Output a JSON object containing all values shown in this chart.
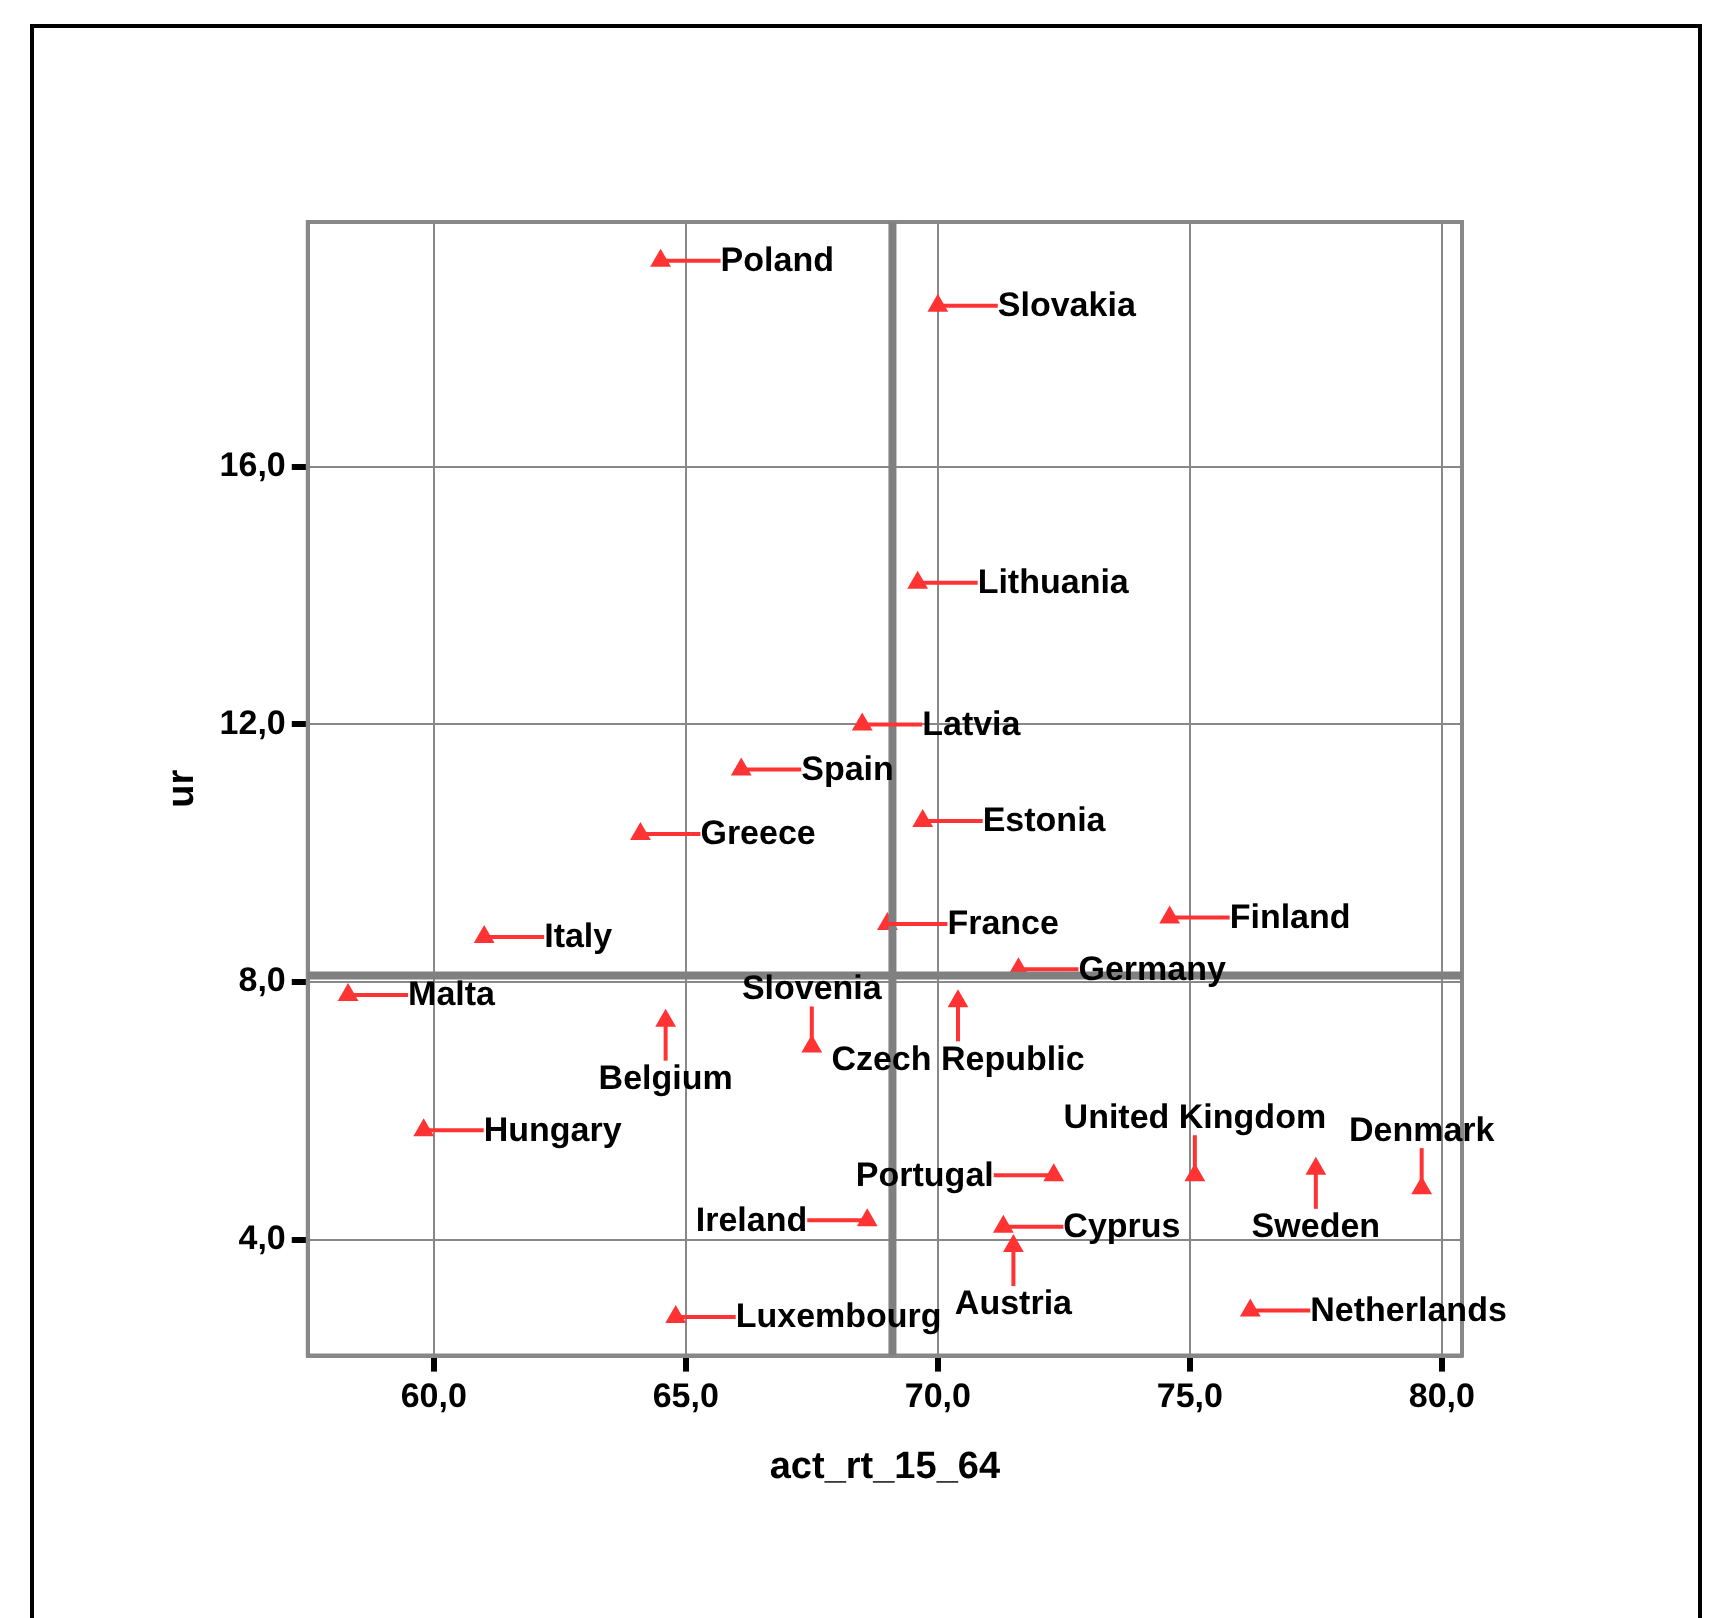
{
  "chart_data": {
    "type": "scatter",
    "xlabel": "act_rt_15_64",
    "ylabel": "ur",
    "x": [
      64.5,
      70.0,
      69.6,
      68.5,
      66.1,
      64.1,
      69.7,
      69.0,
      74.6,
      61.0,
      71.6,
      58.3,
      70.4,
      64.6,
      67.5,
      59.8,
      71.3,
      71.5,
      72.3,
      75.1,
      77.5,
      79.6,
      68.6,
      64.8,
      76.2
    ],
    "values": [
      19.2,
      18.5,
      14.2,
      12.0,
      11.3,
      10.3,
      10.5,
      8.9,
      9.0,
      8.7,
      8.2,
      7.8,
      7.7,
      7.4,
      7.0,
      5.7,
      4.2,
      3.9,
      5.0,
      5.0,
      5.1,
      4.8,
      4.3,
      2.8,
      2.9
    ],
    "color": "#ff3333",
    "marker": "triangle",
    "grid": true,
    "xlim": [
      57.5,
      80.4
    ],
    "ylim": [
      2.2,
      19.8
    ],
    "xticks": [
      {
        "value": 60,
        "label": "60,0"
      },
      {
        "value": 65,
        "label": "65,0"
      },
      {
        "value": 70,
        "label": "70,0"
      },
      {
        "value": 75,
        "label": "75,0"
      },
      {
        "value": 80,
        "label": "80,0"
      }
    ],
    "yticks": [
      {
        "value": 4,
        "label": "4,0"
      },
      {
        "value": 8,
        "label": "8,0"
      },
      {
        "value": 12,
        "label": "12,0"
      },
      {
        "value": 16,
        "label": "16,0"
      }
    ],
    "ref_lines": [
      {
        "axis": "x",
        "value": 69.1,
        "color": "#808080"
      },
      {
        "axis": "y",
        "value": 8.1,
        "color": "#808080"
      }
    ],
    "annotations": [
      {
        "text": "Poland",
        "x": 64.5,
        "y": 19.2
      },
      {
        "text": "Slovakia",
        "x": 70.0,
        "y": 18.5
      },
      {
        "text": "Lithuania",
        "x": 69.6,
        "y": 14.2
      },
      {
        "text": "Latvia",
        "x": 68.5,
        "y": 12.0
      },
      {
        "text": "Spain",
        "x": 66.1,
        "y": 11.3
      },
      {
        "text": "Greece",
        "x": 64.1,
        "y": 10.3
      },
      {
        "text": "Estonia",
        "x": 69.7,
        "y": 10.5
      },
      {
        "text": "France",
        "x": 69.0,
        "y": 8.9
      },
      {
        "text": "Finland",
        "x": 74.6,
        "y": 9.0
      },
      {
        "text": "Italy",
        "x": 61.0,
        "y": 8.7
      },
      {
        "text": "Germany",
        "x": 71.6,
        "y": 8.2
      },
      {
        "text": "Malta",
        "x": 58.3,
        "y": 7.8
      },
      {
        "text": "Czech Republic",
        "x": 70.4,
        "y": 7.7
      },
      {
        "text": "Belgium",
        "x": 64.6,
        "y": 7.4
      },
      {
        "text": "Slovenia",
        "x": 67.5,
        "y": 7.0
      },
      {
        "text": "Hungary",
        "x": 59.8,
        "y": 5.7
      },
      {
        "text": "Cyprus",
        "x": 71.3,
        "y": 4.2
      },
      {
        "text": "Austria",
        "x": 71.5,
        "y": 3.9
      },
      {
        "text": "Portugal",
        "x": 72.3,
        "y": 5.0
      },
      {
        "text": "United Kingdom",
        "x": 75.1,
        "y": 5.0
      },
      {
        "text": "Sweden",
        "x": 77.5,
        "y": 5.1
      },
      {
        "text": "Denmark",
        "x": 79.6,
        "y": 4.8
      },
      {
        "text": "Ireland",
        "x": 68.6,
        "y": 4.3
      },
      {
        "text": "Luxembourg",
        "x": 64.8,
        "y": 2.8
      },
      {
        "text": "Netherlands",
        "x": 76.2,
        "y": 2.9
      }
    ]
  }
}
